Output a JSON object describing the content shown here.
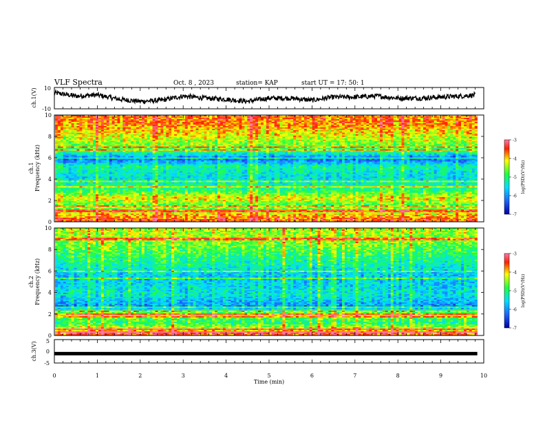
{
  "header": {
    "title": "VLF Spectra",
    "date": "Oct. 8 , 2023",
    "station": "station= KAP",
    "start": "start  UT =   17: 50: 1"
  },
  "chart_data": [
    {
      "type": "line",
      "panel": "ch1-waveform",
      "ylabel": "ch.1(V)",
      "ylim": [
        -10,
        10
      ],
      "yticks": [
        "10",
        "-10"
      ],
      "x": [
        0,
        0.5,
        1,
        1.5,
        2,
        2.5,
        3,
        3.5,
        4,
        4.5,
        5,
        5.5,
        6,
        6.5,
        7,
        7.5,
        8,
        8.5,
        9,
        9.5,
        9.8
      ],
      "y": [
        5,
        2,
        3,
        -1,
        -3,
        -2,
        2,
        0,
        -1,
        -3,
        0,
        0,
        -2,
        1,
        1,
        2,
        0,
        0,
        1,
        2,
        3
      ]
    },
    {
      "type": "heatmap",
      "panel": "ch1-spectrogram",
      "ylabel_top": "ch.1",
      "ylabel": "Frequency (kHz)",
      "yticks": [
        "0",
        "2",
        "4",
        "6",
        "8",
        "10"
      ],
      "ylim": [
        0,
        10
      ],
      "xlim": [
        0,
        9.85
      ],
      "colorbar": {
        "label": "log(PSD)(V²/Hz)",
        "ticks": [
          "-3",
          "-4",
          "-5",
          "-6",
          "-7"
        ],
        "range": [
          -7,
          -3
        ]
      },
      "z_profile_by_freq_khz": [
        [
          0.25,
          -3.6
        ],
        [
          1.5,
          -4.8
        ],
        [
          2.2,
          -4.1
        ],
        [
          3.0,
          -5.0
        ],
        [
          4.2,
          -5.5
        ],
        [
          5.2,
          -5.2
        ],
        [
          5.9,
          -6.3
        ],
        [
          6.6,
          -4.9
        ],
        [
          8.0,
          -4.2
        ],
        [
          9.4,
          -3.7
        ]
      ]
    },
    {
      "type": "heatmap",
      "panel": "ch2-spectrogram",
      "ylabel_top": "ch.2",
      "ylabel": "Frequency (kHz)",
      "yticks": [
        "0",
        "2",
        "4",
        "6",
        "8",
        "10"
      ],
      "ylim": [
        0,
        10
      ],
      "xlim": [
        0,
        9.85
      ],
      "colorbar": {
        "label": "log(PSD)(V²/Hz)",
        "ticks": [
          "-3",
          "-4",
          "-5",
          "-6",
          "-7"
        ],
        "range": [
          -7,
          -3
        ]
      },
      "z_profile_by_freq_khz": [
        [
          0.2,
          -3.6
        ],
        [
          1.2,
          -5.0
        ],
        [
          2.0,
          -4.4
        ],
        [
          2.7,
          -6.0
        ],
        [
          3.8,
          -5.4
        ],
        [
          5.5,
          -5.7
        ],
        [
          7.0,
          -5.1
        ],
        [
          8.5,
          -4.6
        ],
        [
          9.5,
          -4.4
        ]
      ]
    },
    {
      "type": "line",
      "panel": "ch3-waveform",
      "ylabel": "ch.3(V)",
      "ylim": [
        -5,
        5
      ],
      "yticks": [
        "5",
        "0",
        "-5"
      ],
      "x": [
        0,
        9.85
      ],
      "y": [
        -1,
        -1
      ]
    }
  ],
  "xaxis": {
    "label": "Time (min)",
    "ticks": [
      "0",
      "1",
      "2",
      "3",
      "4",
      "5",
      "6",
      "7",
      "8",
      "9",
      "10"
    ]
  }
}
